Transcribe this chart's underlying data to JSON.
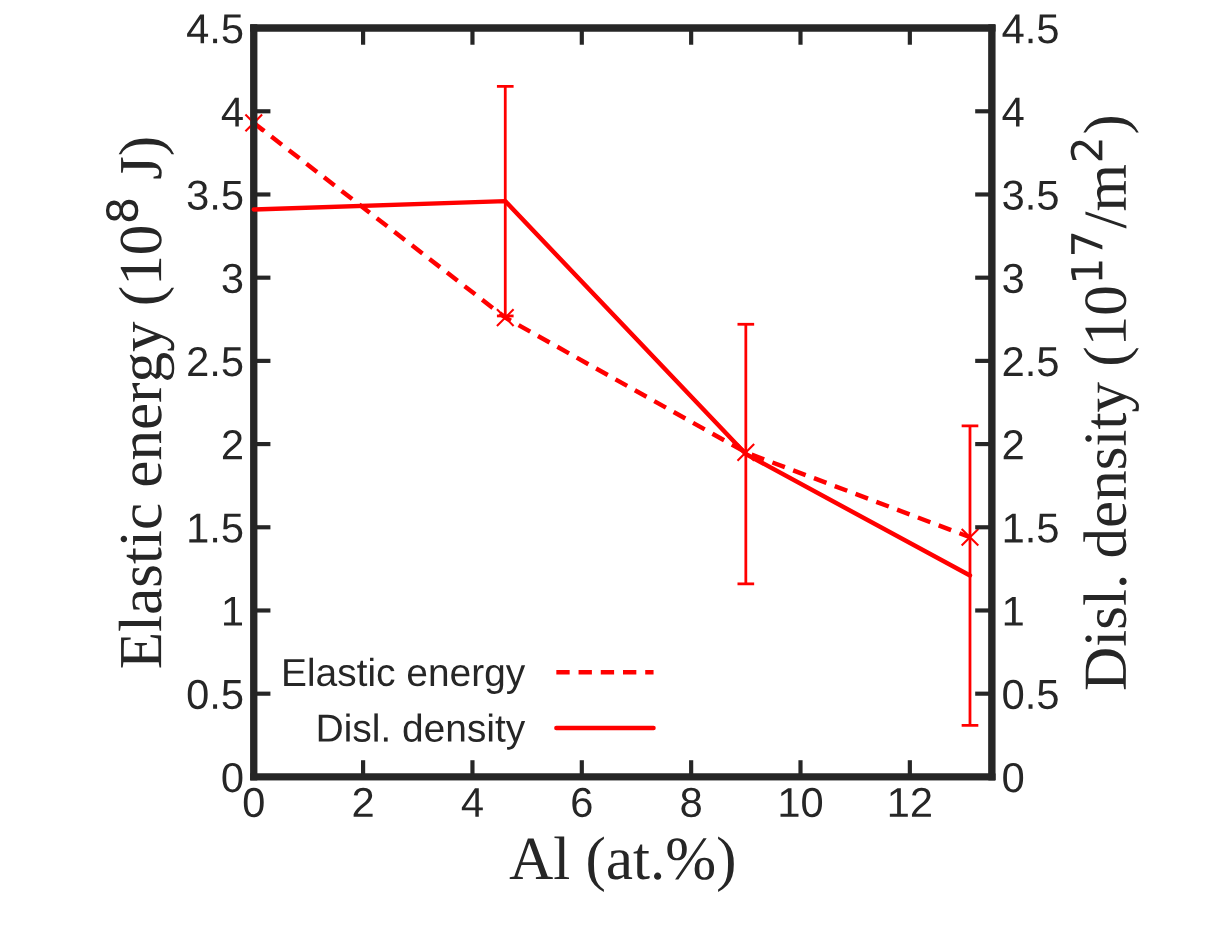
{
  "chart_data": {
    "type": "line",
    "xlabel": "Al (at.%)",
    "ylabel": "Elastic energy (10$^{8}$ J)",
    "y2label": "Disl. density (10$^{17}$/m$^{2}$)",
    "x": [
      0,
      4.6,
      9.0,
      13.1
    ],
    "series": [
      {
        "name": "Elastic energy",
        "color": "#ff0000",
        "values": [
          3.93,
          2.76,
          1.95,
          1.44
        ],
        "line_style": "dashed",
        "marker": "cross"
      },
      {
        "name": "Disl. density",
        "color": "#ff0000",
        "values": [
          3.41,
          3.46,
          1.94,
          1.21
        ],
        "errors": [
          null,
          0.69,
          0.78,
          0.9
        ],
        "line_style": "solid",
        "marker": "none",
        "axis": "y2"
      }
    ],
    "xlim": [
      0,
      13.5
    ],
    "xticks": [
      0,
      2,
      4,
      6,
      8,
      10,
      12
    ],
    "ylim": [
      0,
      4.5
    ],
    "yticks": [
      0,
      0.5,
      1,
      1.5,
      2,
      2.5,
      3,
      3.5,
      4,
      4.5
    ],
    "y2lim": [
      0,
      4.5
    ],
    "y2ticks": [
      0,
      0.5,
      1,
      1.5,
      2,
      2.5,
      3,
      3.5,
      4,
      4.5
    ],
    "grid": false,
    "legend": "bottom left"
  }
}
